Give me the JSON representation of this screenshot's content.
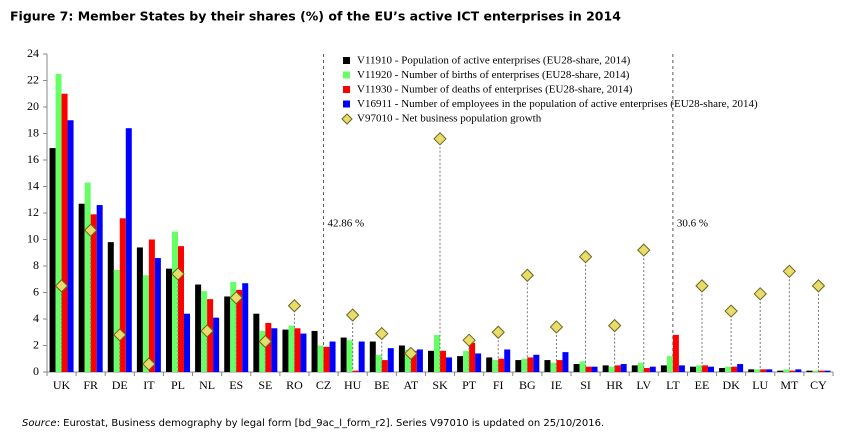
{
  "chart_data": {
    "type": "bar",
    "title": "Figure 7: Member States by their shares (%) of the EU’s active ICT enterprises in 2014",
    "categories": [
      "UK",
      "FR",
      "DE",
      "IT",
      "PL",
      "NL",
      "ES",
      "SE",
      "RO",
      "CZ",
      "HU",
      "BE",
      "AT",
      "SK",
      "PT",
      "FI",
      "BG",
      "IE",
      "SI",
      "HR",
      "LV",
      "LT",
      "EE",
      "DK",
      "LU",
      "MT",
      "CY"
    ],
    "series": [
      {
        "name": "V11910 - Population of active enterprises (EU28-share, 2014)",
        "color": "#000000",
        "values": [
          16.9,
          12.7,
          9.8,
          9.4,
          7.8,
          6.6,
          5.7,
          4.4,
          3.2,
          3.1,
          2.6,
          2.3,
          2.0,
          1.6,
          1.2,
          1.1,
          0.9,
          0.9,
          0.6,
          0.5,
          0.5,
          0.5,
          0.4,
          0.3,
          0.2,
          0.1,
          0.1
        ]
      },
      {
        "name": "V11920 - Number of births of enterprises (EU28-share, 2014)",
        "color": "#66ff66",
        "values": [
          22.5,
          14.3,
          7.7,
          7.3,
          10.6,
          6.1,
          6.8,
          3.1,
          3.5,
          2.0,
          2.4,
          1.3,
          1.7,
          2.8,
          1.6,
          0.9,
          1.0,
          0.7,
          0.8,
          0.4,
          0.7,
          1.2,
          0.5,
          0.4,
          0.2,
          0.2,
          0.1
        ]
      },
      {
        "name": "V11930 - Number of deaths of enterprises (EU28-share, 2014)",
        "color": "#ff0000",
        "values": [
          21.0,
          11.9,
          11.6,
          10.0,
          9.5,
          5.5,
          6.2,
          3.7,
          3.3,
          1.9,
          0.1,
          0.9,
          1.6,
          1.6,
          2.2,
          1.0,
          1.1,
          0.9,
          0.4,
          0.5,
          0.3,
          2.8,
          0.5,
          0.4,
          0.2,
          0.1,
          0.1
        ]
      },
      {
        "name": "V16911 - Number of employees in the population of active enterprises (EU28-share, 2014)",
        "color": "#0000ff",
        "values": [
          19.0,
          12.6,
          18.4,
          8.6,
          4.4,
          4.1,
          6.7,
          3.3,
          2.9,
          2.3,
          2.3,
          1.8,
          1.7,
          1.1,
          1.4,
          1.7,
          1.3,
          1.5,
          0.4,
          0.6,
          0.4,
          0.5,
          0.4,
          0.6,
          0.2,
          0.2,
          0.1
        ]
      },
      {
        "name": "V97010 - Net business population growth",
        "color": "#e8dc6a",
        "marker": "diamond",
        "values": [
          6.5,
          10.7,
          2.8,
          0.6,
          7.4,
          3.1,
          5.6,
          2.3,
          5.0,
          null,
          4.3,
          2.9,
          1.4,
          17.6,
          2.4,
          3.0,
          7.3,
          3.4,
          8.7,
          3.5,
          9.2,
          null,
          6.5,
          4.6,
          5.9,
          7.6,
          6.5
        ]
      }
    ],
    "annotations": [
      "42.86 %",
      "30.6 %"
    ],
    "ylim": [
      0,
      24
    ],
    "yticks": [
      0,
      2,
      4,
      6,
      8,
      10,
      12,
      14,
      16,
      18,
      20,
      22,
      24
    ],
    "grid": false,
    "source_label": "Source",
    "source_text": ": Eurostat, Business demography by legal form [bd_9ac_l_form_r2]. Series V97010 is updated on 25/10/2016."
  }
}
